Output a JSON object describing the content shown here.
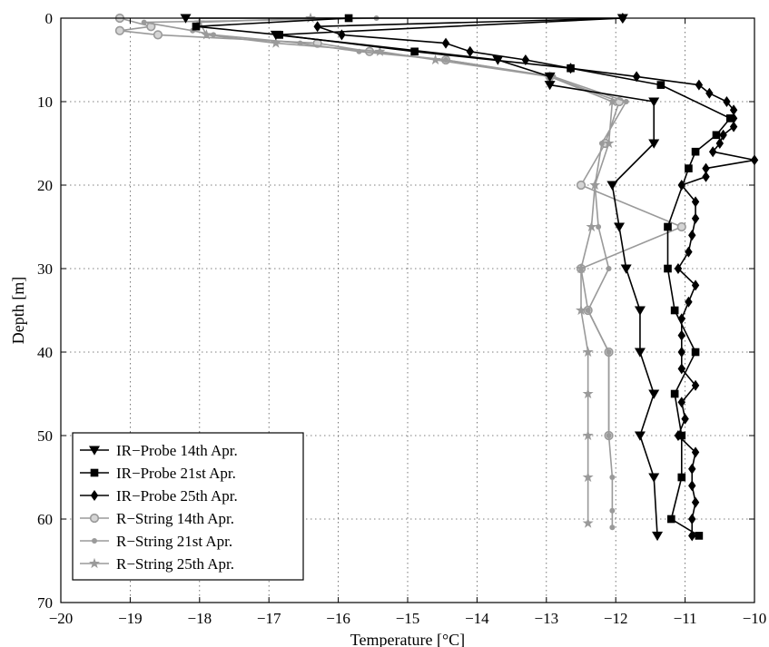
{
  "chart_data": {
    "type": "line",
    "xlabel": "Temperature [°C]",
    "ylabel": "Depth [m]",
    "xlim": [
      -20,
      -10
    ],
    "ylim": [
      0,
      70
    ],
    "y_inverted": true,
    "grid": true,
    "legend_position": "bottom-left",
    "xticks": [
      -20,
      -19,
      -18,
      -17,
      -16,
      -15,
      -14,
      -13,
      -12,
      -11,
      -10
    ],
    "yticks": [
      0,
      10,
      20,
      30,
      40,
      50,
      60,
      70
    ],
    "series": [
      {
        "name": "IR−Probe 14th Apr.",
        "color": "#000000",
        "marker": "triangle-down",
        "points": [
          [
            -18.2,
            0
          ],
          [
            -11.9,
            0
          ],
          [
            -16.9,
            2
          ],
          [
            -13.7,
            5
          ],
          [
            -12.95,
            7
          ],
          [
            -12.95,
            8
          ],
          [
            -11.45,
            10
          ],
          [
            -11.45,
            15
          ],
          [
            -12.05,
            20
          ],
          [
            -11.95,
            25
          ],
          [
            -11.85,
            30
          ],
          [
            -11.65,
            35
          ],
          [
            -11.65,
            40
          ],
          [
            -11.45,
            45
          ],
          [
            -11.65,
            50
          ],
          [
            -11.45,
            55
          ],
          [
            -11.4,
            62
          ]
        ]
      },
      {
        "name": "IR−Probe 21st Apr.",
        "color": "#000000",
        "marker": "square",
        "points": [
          [
            -15.85,
            0
          ],
          [
            -18.05,
            1
          ],
          [
            -16.85,
            2
          ],
          [
            -14.9,
            4
          ],
          [
            -12.65,
            6
          ],
          [
            -11.35,
            8
          ],
          [
            -10.35,
            12
          ],
          [
            -10.55,
            14
          ],
          [
            -10.85,
            16
          ],
          [
            -10.95,
            18
          ],
          [
            -11.25,
            25
          ],
          [
            -11.25,
            30
          ],
          [
            -11.15,
            35
          ],
          [
            -10.85,
            40
          ],
          [
            -11.15,
            45
          ],
          [
            -11.05,
            50
          ],
          [
            -11.05,
            55
          ],
          [
            -11.2,
            60
          ],
          [
            -10.8,
            62
          ]
        ]
      },
      {
        "name": "IR−Probe 25th Apr.",
        "color": "#000000",
        "marker": "diamond",
        "points": [
          [
            -11.9,
            0
          ],
          [
            -16.3,
            1
          ],
          [
            -15.95,
            2
          ],
          [
            -14.45,
            3
          ],
          [
            -14.1,
            4
          ],
          [
            -13.3,
            5
          ],
          [
            -12.65,
            6
          ],
          [
            -11.7,
            7
          ],
          [
            -10.8,
            8
          ],
          [
            -10.65,
            9
          ],
          [
            -10.4,
            10
          ],
          [
            -10.3,
            11
          ],
          [
            -10.3,
            12
          ],
          [
            -10.3,
            13
          ],
          [
            -10.45,
            14
          ],
          [
            -10.5,
            15
          ],
          [
            -10.6,
            16
          ],
          [
            -10.0,
            17
          ],
          [
            -10.7,
            18
          ],
          [
            -10.7,
            19
          ],
          [
            -11.05,
            20
          ],
          [
            -10.85,
            22
          ],
          [
            -10.85,
            24
          ],
          [
            -10.9,
            26
          ],
          [
            -10.95,
            28
          ],
          [
            -11.1,
            30
          ],
          [
            -10.85,
            32
          ],
          [
            -10.95,
            34
          ],
          [
            -11.05,
            36
          ],
          [
            -11.05,
            38
          ],
          [
            -11.05,
            40
          ],
          [
            -11.05,
            42
          ],
          [
            -10.85,
            44
          ],
          [
            -11.05,
            46
          ],
          [
            -11.0,
            48
          ],
          [
            -11.1,
            50
          ],
          [
            -10.85,
            52
          ],
          [
            -10.9,
            54
          ],
          [
            -10.9,
            56
          ],
          [
            -10.85,
            58
          ],
          [
            -10.9,
            60
          ],
          [
            -10.9,
            62
          ]
        ]
      },
      {
        "name": "R−String 14th Apr.",
        "color": "#9a9a9a",
        "marker": "circle",
        "points": [
          [
            -19.15,
            0
          ],
          [
            -18.7,
            1
          ],
          [
            -19.15,
            1.5
          ],
          [
            -18.6,
            2
          ],
          [
            -16.3,
            3
          ],
          [
            -15.55,
            4
          ],
          [
            -14.45,
            5
          ],
          [
            -12.95,
            7
          ],
          [
            -11.95,
            10
          ],
          [
            -12.15,
            15
          ],
          [
            -12.5,
            20
          ],
          [
            -11.05,
            25
          ],
          [
            -12.5,
            30
          ],
          [
            -12.4,
            35
          ],
          [
            -12.1,
            40
          ],
          [
            -12.1,
            50
          ]
        ]
      },
      {
        "name": "R−String 21st Apr.",
        "color": "#9a9a9a",
        "marker": "dot",
        "points": [
          [
            -15.45,
            0
          ],
          [
            -18.8,
            0.5
          ],
          [
            -18.1,
            1.5
          ],
          [
            -17.8,
            2
          ],
          [
            -16.55,
            3
          ],
          [
            -15.7,
            4
          ],
          [
            -14.45,
            5
          ],
          [
            -12.9,
            7
          ],
          [
            -11.85,
            10
          ],
          [
            -12.2,
            15
          ],
          [
            -12.3,
            20
          ],
          [
            -12.25,
            25
          ],
          [
            -12.1,
            30
          ],
          [
            -12.4,
            35
          ],
          [
            -12.1,
            40
          ],
          [
            -12.1,
            50
          ],
          [
            -12.05,
            55
          ],
          [
            -12.05,
            59
          ],
          [
            -12.05,
            61
          ]
        ]
      },
      {
        "name": "R−String 25th Apr.",
        "color": "#9a9a9a",
        "marker": "star",
        "points": [
          [
            -16.4,
            0
          ],
          [
            -18.0,
            0.5
          ],
          [
            -17.9,
            2
          ],
          [
            -16.9,
            3
          ],
          [
            -15.4,
            4
          ],
          [
            -14.6,
            5
          ],
          [
            -12.95,
            7
          ],
          [
            -12.05,
            10
          ],
          [
            -12.1,
            15
          ],
          [
            -12.3,
            20
          ],
          [
            -12.35,
            25
          ],
          [
            -12.5,
            30
          ],
          [
            -12.5,
            35
          ],
          [
            -12.4,
            40
          ],
          [
            -12.4,
            45
          ],
          [
            -12.4,
            50
          ],
          [
            -12.4,
            55
          ],
          [
            -12.4,
            60.5
          ]
        ]
      }
    ]
  }
}
